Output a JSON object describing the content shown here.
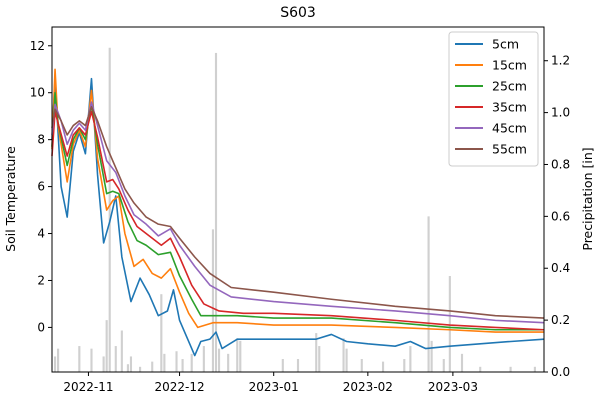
{
  "chart_data": {
    "type": "line",
    "title": "S603",
    "ylabel": "Soil Temperature",
    "y2label": "Precipitation [in]",
    "xlabel": "",
    "x_range": [
      "2022-10-20",
      "2023-03-31"
    ],
    "ylim": [
      -1.9,
      12.8
    ],
    "y2lim": [
      0.0,
      1.33
    ],
    "y_ticks": [
      0,
      2,
      4,
      6,
      8,
      10,
      12
    ],
    "y2_ticks": [
      0.0,
      0.2,
      0.4,
      0.6,
      0.8,
      1.0,
      1.2
    ],
    "y2_tick_labels": [
      "0.0",
      "0.2",
      "0.4",
      "0.6",
      "0.8",
      "1.0",
      "1.2"
    ],
    "x_ticks": [
      "2022-11-01",
      "2022-12-01",
      "2023-01-01",
      "2023-02-01",
      "2023-03-01"
    ],
    "x_tick_labels": [
      "2022-11",
      "2022-12",
      "2023-01",
      "2023-02",
      "2023-03"
    ],
    "grid": false,
    "legend_position": "top-right",
    "series": [
      {
        "name": "5cm",
        "color": "#1f77b4",
        "points": [
          [
            "2022-10-20",
            8.0
          ],
          [
            "2022-10-21",
            10.6
          ],
          [
            "2022-10-22",
            8.3
          ],
          [
            "2022-10-23",
            6.0
          ],
          [
            "2022-10-25",
            4.7
          ],
          [
            "2022-10-27",
            7.5
          ],
          [
            "2022-10-29",
            8.3
          ],
          [
            "2022-10-31",
            7.4
          ],
          [
            "2022-11-02",
            10.6
          ],
          [
            "2022-11-04",
            6.5
          ],
          [
            "2022-11-06",
            3.6
          ],
          [
            "2022-11-08",
            4.5
          ],
          [
            "2022-11-10",
            5.6
          ],
          [
            "2022-11-12",
            3.0
          ],
          [
            "2022-11-15",
            1.1
          ],
          [
            "2022-11-18",
            2.1
          ],
          [
            "2022-11-21",
            1.4
          ],
          [
            "2022-11-24",
            0.5
          ],
          [
            "2022-11-27",
            0.7
          ],
          [
            "2022-11-29",
            1.6
          ],
          [
            "2022-12-01",
            0.3
          ],
          [
            "2022-12-04",
            -0.6
          ],
          [
            "2022-12-06",
            -1.2
          ],
          [
            "2022-12-08",
            -0.6
          ],
          [
            "2022-12-11",
            -0.5
          ],
          [
            "2022-12-13",
            -0.2
          ],
          [
            "2022-12-15",
            -0.9
          ],
          [
            "2022-12-20",
            -0.5
          ],
          [
            "2023-01-01",
            -0.5
          ],
          [
            "2023-01-15",
            -0.5
          ],
          [
            "2023-01-20",
            -0.3
          ],
          [
            "2023-01-25",
            -0.6
          ],
          [
            "2023-02-01",
            -0.7
          ],
          [
            "2023-02-10",
            -0.8
          ],
          [
            "2023-02-15",
            -0.6
          ],
          [
            "2023-02-20",
            -0.9
          ],
          [
            "2023-02-28",
            -0.8
          ],
          [
            "2023-03-10",
            -0.7
          ],
          [
            "2023-03-20",
            -0.6
          ],
          [
            "2023-03-31",
            -0.5
          ]
        ]
      },
      {
        "name": "15cm",
        "color": "#ff7f0e",
        "points": [
          [
            "2022-10-20",
            7.6
          ],
          [
            "2022-10-21",
            11.0
          ],
          [
            "2022-10-22",
            8.6
          ],
          [
            "2022-10-25",
            6.2
          ],
          [
            "2022-10-27",
            7.8
          ],
          [
            "2022-10-29",
            8.4
          ],
          [
            "2022-10-31",
            7.7
          ],
          [
            "2022-11-02",
            10.1
          ],
          [
            "2022-11-04",
            7.2
          ],
          [
            "2022-11-07",
            5.0
          ],
          [
            "2022-11-09",
            5.4
          ],
          [
            "2022-11-11",
            5.6
          ],
          [
            "2022-11-13",
            4.0
          ],
          [
            "2022-11-16",
            2.6
          ],
          [
            "2022-11-19",
            2.9
          ],
          [
            "2022-11-22",
            2.3
          ],
          [
            "2022-11-25",
            2.1
          ],
          [
            "2022-11-28",
            2.5
          ],
          [
            "2022-12-01",
            1.5
          ],
          [
            "2022-12-04",
            0.6
          ],
          [
            "2022-12-07",
            0.0
          ],
          [
            "2022-12-12",
            0.2
          ],
          [
            "2022-12-20",
            0.2
          ],
          [
            "2023-01-01",
            0.1
          ],
          [
            "2023-01-20",
            0.1
          ],
          [
            "2023-02-10",
            0.0
          ],
          [
            "2023-02-28",
            -0.1
          ],
          [
            "2023-03-15",
            -0.2
          ],
          [
            "2023-03-31",
            -0.2
          ]
        ]
      },
      {
        "name": "25cm",
        "color": "#2ca02c",
        "points": [
          [
            "2022-10-20",
            7.7
          ],
          [
            "2022-10-21",
            10.0
          ],
          [
            "2022-10-22",
            8.7
          ],
          [
            "2022-10-25",
            6.9
          ],
          [
            "2022-10-27",
            8.0
          ],
          [
            "2022-10-29",
            8.5
          ],
          [
            "2022-10-31",
            8.0
          ],
          [
            "2022-11-02",
            9.5
          ],
          [
            "2022-11-04",
            7.8
          ],
          [
            "2022-11-07",
            5.7
          ],
          [
            "2022-11-09",
            5.8
          ],
          [
            "2022-11-11",
            5.7
          ],
          [
            "2022-11-14",
            4.5
          ],
          [
            "2022-11-17",
            3.7
          ],
          [
            "2022-11-20",
            3.5
          ],
          [
            "2022-11-24",
            3.1
          ],
          [
            "2022-11-28",
            3.2
          ],
          [
            "2022-12-01",
            2.2
          ],
          [
            "2022-12-05",
            1.2
          ],
          [
            "2022-12-08",
            0.5
          ],
          [
            "2022-12-12",
            0.5
          ],
          [
            "2022-12-20",
            0.5
          ],
          [
            "2023-01-01",
            0.4
          ],
          [
            "2023-01-20",
            0.4
          ],
          [
            "2023-02-10",
            0.2
          ],
          [
            "2023-02-28",
            0.0
          ],
          [
            "2023-03-15",
            -0.1
          ],
          [
            "2023-03-31",
            -0.1
          ]
        ]
      },
      {
        "name": "35cm",
        "color": "#d62728",
        "points": [
          [
            "2022-10-20",
            7.3
          ],
          [
            "2022-10-21",
            9.2
          ],
          [
            "2022-10-22",
            8.7
          ],
          [
            "2022-10-25",
            7.3
          ],
          [
            "2022-10-27",
            8.2
          ],
          [
            "2022-10-29",
            8.5
          ],
          [
            "2022-10-31",
            8.2
          ],
          [
            "2022-11-02",
            9.2
          ],
          [
            "2022-11-04",
            8.1
          ],
          [
            "2022-11-07",
            6.2
          ],
          [
            "2022-11-09",
            6.3
          ],
          [
            "2022-11-11",
            5.9
          ],
          [
            "2022-11-14",
            5.0
          ],
          [
            "2022-11-17",
            4.3
          ],
          [
            "2022-11-21",
            3.9
          ],
          [
            "2022-11-25",
            3.5
          ],
          [
            "2022-11-28",
            3.8
          ],
          [
            "2022-12-01",
            3.0
          ],
          [
            "2022-12-05",
            1.8
          ],
          [
            "2022-12-09",
            1.0
          ],
          [
            "2022-12-14",
            0.7
          ],
          [
            "2022-12-22",
            0.6
          ],
          [
            "2023-01-01",
            0.6
          ],
          [
            "2023-01-20",
            0.5
          ],
          [
            "2023-02-10",
            0.3
          ],
          [
            "2023-02-28",
            0.1
          ],
          [
            "2023-03-15",
            0.0
          ],
          [
            "2023-03-31",
            -0.1
          ]
        ]
      },
      {
        "name": "45cm",
        "color": "#9467bd",
        "points": [
          [
            "2022-10-20",
            8.2
          ],
          [
            "2022-10-21",
            9.5
          ],
          [
            "2022-10-23",
            8.8
          ],
          [
            "2022-10-25",
            7.8
          ],
          [
            "2022-10-27",
            8.4
          ],
          [
            "2022-10-29",
            8.7
          ],
          [
            "2022-10-31",
            8.4
          ],
          [
            "2022-11-02",
            9.6
          ],
          [
            "2022-11-04",
            8.6
          ],
          [
            "2022-11-07",
            7.1
          ],
          [
            "2022-11-10",
            6.6
          ],
          [
            "2022-11-13",
            5.6
          ],
          [
            "2022-11-16",
            4.8
          ],
          [
            "2022-11-20",
            4.4
          ],
          [
            "2022-11-24",
            3.9
          ],
          [
            "2022-11-28",
            4.2
          ],
          [
            "2022-12-01",
            3.5
          ],
          [
            "2022-12-06",
            2.6
          ],
          [
            "2022-12-11",
            1.8
          ],
          [
            "2022-12-18",
            1.3
          ],
          [
            "2023-01-01",
            1.1
          ],
          [
            "2023-01-20",
            0.9
          ],
          [
            "2023-02-10",
            0.7
          ],
          [
            "2023-02-28",
            0.5
          ],
          [
            "2023-03-15",
            0.3
          ],
          [
            "2023-03-31",
            0.2
          ]
        ]
      },
      {
        "name": "55cm",
        "color": "#8c564b",
        "points": [
          [
            "2022-10-20",
            8.5
          ],
          [
            "2022-10-21",
            9.3
          ],
          [
            "2022-10-23",
            8.8
          ],
          [
            "2022-10-25",
            8.2
          ],
          [
            "2022-10-27",
            8.6
          ],
          [
            "2022-10-29",
            8.8
          ],
          [
            "2022-10-31",
            8.6
          ],
          [
            "2022-11-02",
            9.4
          ],
          [
            "2022-11-04",
            8.8
          ],
          [
            "2022-11-07",
            7.7
          ],
          [
            "2022-11-10",
            6.8
          ],
          [
            "2022-11-13",
            5.9
          ],
          [
            "2022-11-16",
            5.3
          ],
          [
            "2022-11-20",
            4.7
          ],
          [
            "2022-11-24",
            4.4
          ],
          [
            "2022-11-28",
            4.3
          ],
          [
            "2022-12-01",
            3.8
          ],
          [
            "2022-12-06",
            3.0
          ],
          [
            "2022-12-11",
            2.3
          ],
          [
            "2022-12-18",
            1.7
          ],
          [
            "2023-01-01",
            1.5
          ],
          [
            "2023-01-20",
            1.2
          ],
          [
            "2023-02-10",
            0.9
          ],
          [
            "2023-02-28",
            0.7
          ],
          [
            "2023-03-15",
            0.5
          ],
          [
            "2023-03-31",
            0.4
          ]
        ]
      }
    ],
    "precipitation": {
      "type": "bar",
      "axis": "right",
      "color": "#d0d0d0",
      "points": [
        [
          "2022-10-21",
          0.06
        ],
        [
          "2022-10-22",
          0.09
        ],
        [
          "2022-10-29",
          0.1
        ],
        [
          "2022-11-02",
          0.09
        ],
        [
          "2022-11-06",
          0.06
        ],
        [
          "2022-11-07",
          0.2
        ],
        [
          "2022-11-08",
          1.25
        ],
        [
          "2022-11-10",
          0.1
        ],
        [
          "2022-11-12",
          0.16
        ],
        [
          "2022-11-14",
          0.03
        ],
        [
          "2022-11-15",
          0.06
        ],
        [
          "2022-11-18",
          0.02
        ],
        [
          "2022-11-22",
          0.04
        ],
        [
          "2022-11-25",
          0.3
        ],
        [
          "2022-11-26",
          0.07
        ],
        [
          "2022-11-30",
          0.08
        ],
        [
          "2022-12-02",
          0.05
        ],
        [
          "2022-12-05",
          0.07
        ],
        [
          "2022-12-09",
          0.1
        ],
        [
          "2022-12-12",
          0.55
        ],
        [
          "2022-12-13",
          1.23
        ],
        [
          "2022-12-14",
          0.09
        ],
        [
          "2022-12-17",
          0.07
        ],
        [
          "2022-12-20",
          0.13
        ],
        [
          "2022-12-21",
          0.12
        ],
        [
          "2023-01-04",
          0.05
        ],
        [
          "2023-01-09",
          0.05
        ],
        [
          "2023-01-15",
          0.15
        ],
        [
          "2023-01-16",
          0.1
        ],
        [
          "2023-01-24",
          0.13
        ],
        [
          "2023-01-25",
          0.09
        ],
        [
          "2023-01-30",
          0.05
        ],
        [
          "2023-02-06",
          0.04
        ],
        [
          "2023-02-13",
          0.05
        ],
        [
          "2023-02-15",
          0.1
        ],
        [
          "2023-02-21",
          0.6
        ],
        [
          "2023-02-22",
          0.12
        ],
        [
          "2023-02-26",
          0.05
        ],
        [
          "2023-02-28",
          0.37
        ],
        [
          "2023-03-04",
          0.07
        ],
        [
          "2023-03-10",
          0.02
        ],
        [
          "2023-03-20",
          0.02
        ],
        [
          "2023-03-28",
          0.02
        ]
      ]
    }
  }
}
